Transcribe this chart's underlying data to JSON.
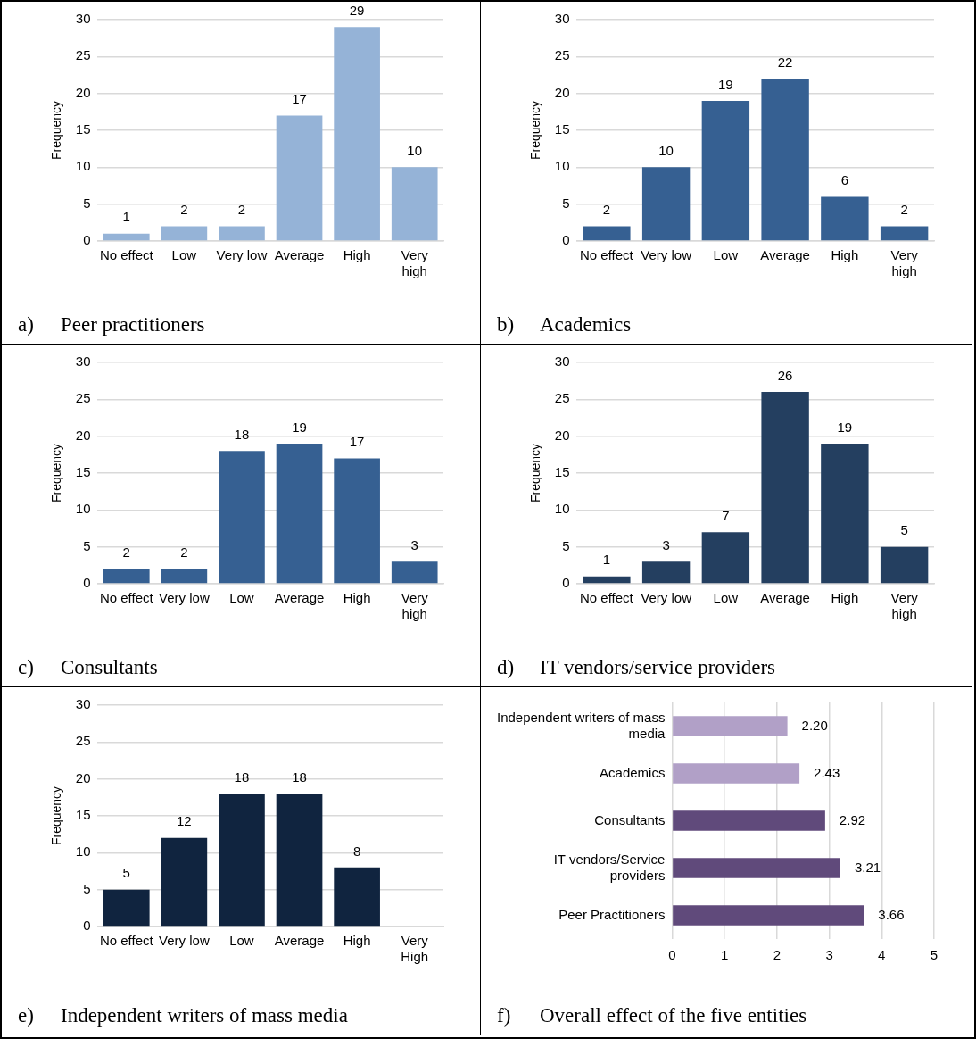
{
  "chart_data": [
    {
      "type": "bar",
      "title": "a) Peer practitioners",
      "ylabel": "Frequency",
      "categories": [
        "No effect",
        "Low",
        "Very low",
        "Average",
        "High",
        "Very high"
      ],
      "values": [
        1,
        2,
        2,
        17,
        29,
        10
      ],
      "color": "#95b3d7",
      "ylim": [
        0,
        30
      ],
      "yticks": [
        0,
        5,
        10,
        15,
        20,
        25,
        30
      ],
      "grid": "y",
      "legend": false,
      "data_labels": true
    },
    {
      "type": "bar",
      "title": "b) Academics",
      "ylabel": "Frequency",
      "categories": [
        "No effect",
        "Very low",
        "Low",
        "Average",
        "High",
        "Very high"
      ],
      "values": [
        2,
        10,
        19,
        22,
        6,
        2
      ],
      "color": "#366092",
      "ylim": [
        0,
        30
      ],
      "yticks": [
        0,
        5,
        10,
        15,
        20,
        25,
        30
      ],
      "grid": "y",
      "legend": false,
      "data_labels": true
    },
    {
      "type": "bar",
      "title": "c) Consultants",
      "ylabel": "Frequency",
      "categories": [
        "No effect",
        "Very low",
        "Low",
        "Average",
        "High",
        "Very high"
      ],
      "values": [
        2,
        2,
        18,
        19,
        17,
        3
      ],
      "color": "#366092",
      "ylim": [
        0,
        30
      ],
      "yticks": [
        0,
        5,
        10,
        15,
        20,
        25,
        30
      ],
      "grid": "y",
      "legend": false,
      "data_labels": true
    },
    {
      "type": "bar",
      "title": "d) IT vendors/service providers",
      "ylabel": "Frequency",
      "categories": [
        "No effect",
        "Very low",
        "Low",
        "Average",
        "High",
        "Very high"
      ],
      "values": [
        1,
        3,
        7,
        26,
        19,
        5
      ],
      "color": "#243f60",
      "ylim": [
        0,
        30
      ],
      "yticks": [
        0,
        5,
        10,
        15,
        20,
        25,
        30
      ],
      "grid": "y",
      "legend": false,
      "data_labels": true
    },
    {
      "type": "bar",
      "title": "e) Independent writers of mass media",
      "ylabel": "Frequency",
      "categories": [
        "No effect",
        "Very low",
        "Low",
        "Average",
        "High",
        "Very High"
      ],
      "values": [
        5,
        12,
        18,
        18,
        8,
        null
      ],
      "color": "#10243f",
      "ylim": [
        0,
        30
      ],
      "yticks": [
        0,
        5,
        10,
        15,
        20,
        25,
        30
      ],
      "grid": "y",
      "legend": false,
      "data_labels": true
    },
    {
      "type": "bar",
      "orientation": "horizontal",
      "title": "f) Overall effect of the five entities",
      "categories": [
        "Independent writers of mass media",
        "Academics",
        "Consultants",
        "IT vendors/Service providers",
        "Peer Practitioners"
      ],
      "values": [
        2.2,
        2.43,
        2.92,
        3.21,
        3.66
      ],
      "value_labels": [
        "2.20",
        "2.43",
        "2.92",
        "3.21",
        "3.66"
      ],
      "colors": [
        "#b1a0c7",
        "#b1a0c7",
        "#604a7b",
        "#604a7b",
        "#604a7b"
      ],
      "xlim": [
        0,
        5
      ],
      "xticks": [
        0,
        1,
        2,
        3,
        4,
        5
      ],
      "grid": "x",
      "legend": false
    }
  ]
}
